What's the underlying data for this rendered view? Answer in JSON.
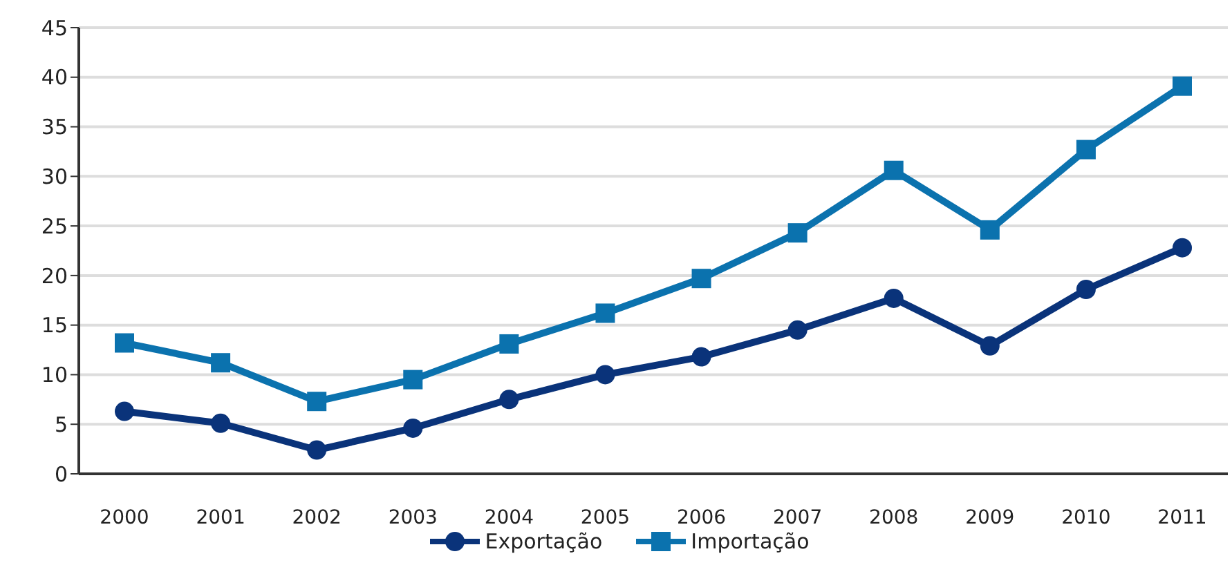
{
  "chart_data": {
    "type": "line",
    "categories": [
      "2000",
      "2001",
      "2002",
      "2003",
      "2004",
      "2005",
      "2006",
      "2007",
      "2008",
      "2009",
      "2010",
      "2011"
    ],
    "series": [
      {
        "name": "Exportação",
        "color": "#0a337a",
        "marker": "circle",
        "values": [
          6.3,
          5.1,
          2.4,
          4.6,
          7.5,
          10.0,
          11.8,
          14.5,
          17.7,
          12.9,
          18.6,
          22.8
        ]
      },
      {
        "name": "Importação",
        "color": "#0b72ae",
        "marker": "square",
        "values": [
          13.2,
          11.2,
          7.3,
          9.5,
          13.1,
          16.2,
          19.7,
          24.3,
          30.6,
          24.6,
          32.7,
          39.1
        ]
      }
    ],
    "ylim": [
      0,
      45
    ],
    "yticks": [
      0,
      5,
      10,
      15,
      20,
      25,
      30,
      35,
      40,
      45
    ],
    "grid": "y",
    "legend": "bottom",
    "line_style": "solid"
  }
}
